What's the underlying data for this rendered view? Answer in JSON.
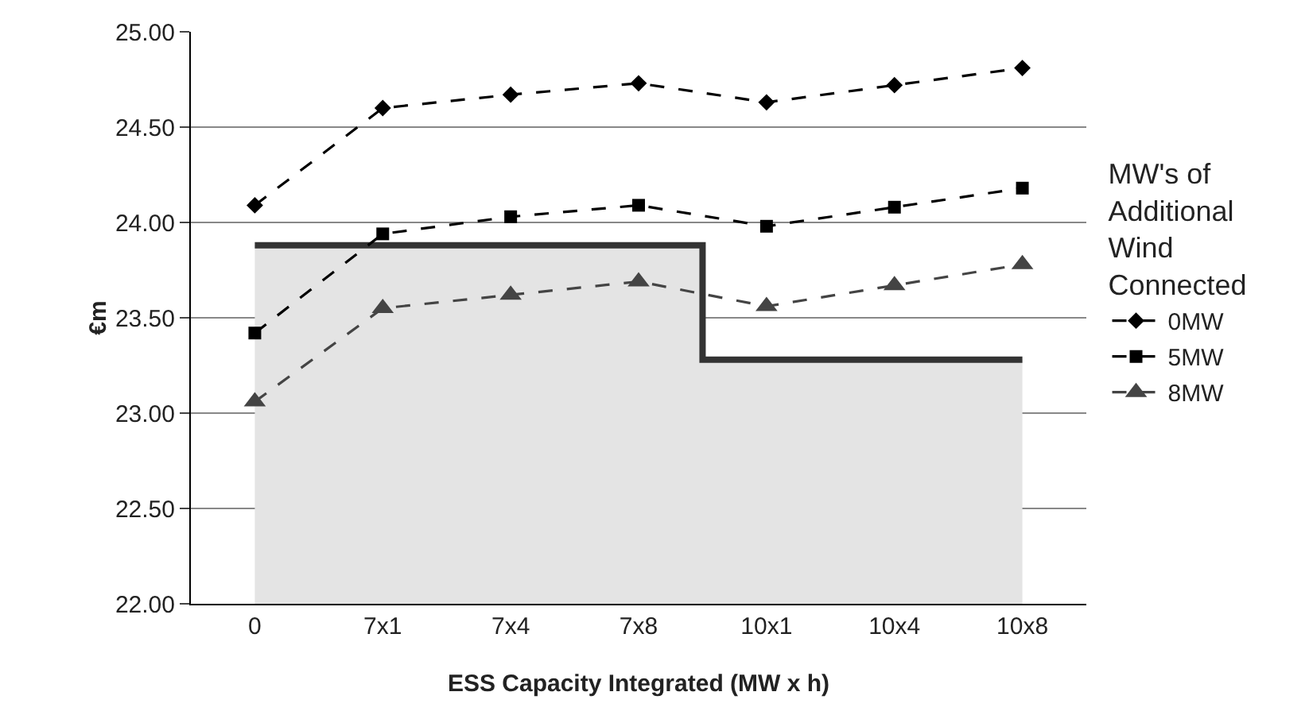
{
  "chart_data": {
    "type": "line",
    "xlabel": "ESS Capacity Integrated (MW x h)",
    "ylabel": "€m",
    "legend_title": "MW's of Additional Wind Connected",
    "categories": [
      "0",
      "7x1",
      "7x4",
      "7x8",
      "10x1",
      "10x4",
      "10x8"
    ],
    "series": [
      {
        "type": "area",
        "color": "#e4e4e4",
        "values": [
          23.88,
          23.88,
          23.88,
          23.88,
          23.28,
          23.28,
          23.28
        ]
      },
      {
        "type": "step",
        "color": "#333333",
        "values": [
          23.88,
          23.88,
          23.88,
          23.88,
          23.28,
          23.28,
          23.28
        ]
      },
      {
        "name": "0MW",
        "color": "#000000",
        "marker": "diamond",
        "line_style": "dashed",
        "values": [
          24.09,
          24.6,
          24.67,
          24.73,
          24.63,
          24.72,
          24.81
        ]
      },
      {
        "name": "5MW",
        "color": "#000000",
        "marker": "square",
        "line_style": "dashed",
        "values": [
          23.42,
          23.94,
          24.03,
          24.09,
          23.98,
          24.08,
          24.18
        ]
      },
      {
        "name": "8MW",
        "color": "#444444",
        "marker": "triangle",
        "line_style": "dashed",
        "values": [
          23.06,
          23.55,
          23.62,
          23.69,
          23.56,
          23.67,
          23.78
        ]
      }
    ],
    "ylim": [
      22,
      25
    ],
    "yticks": [
      {
        "value": 22,
        "label": "22.00"
      },
      {
        "value": 22.5,
        "label": "22.50"
      },
      {
        "value": 23,
        "label": "23.00"
      },
      {
        "value": 23.5,
        "label": "23.50"
      },
      {
        "value": 24,
        "label": "24.00"
      },
      {
        "value": 24.5,
        "label": "24.50"
      },
      {
        "value": 25,
        "label": "25.00"
      }
    ],
    "grid": "y",
    "legend": "right"
  }
}
